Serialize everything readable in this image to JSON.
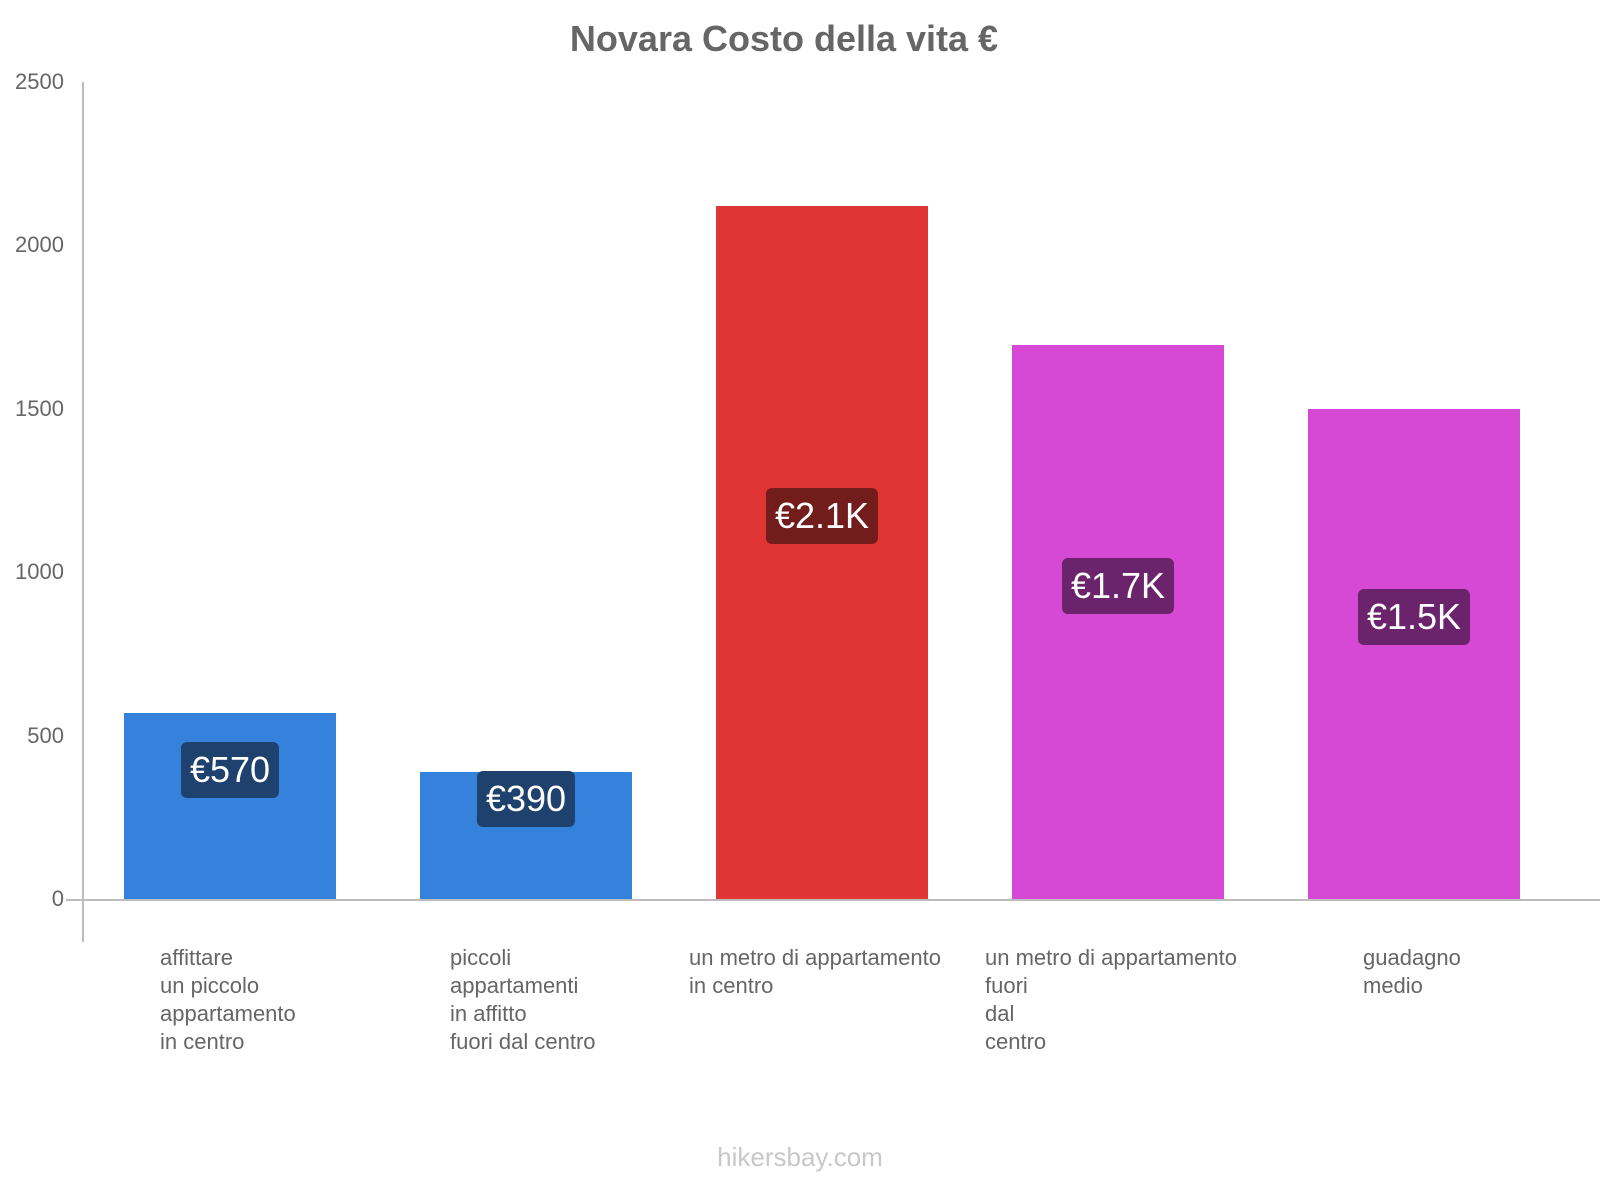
{
  "title": "Novara Costo della vita €",
  "footer": "hikersbay.com",
  "y_ticks": [
    "2500",
    "2000",
    "1500",
    "1000",
    "500",
    "0"
  ],
  "bars": [
    {
      "label_lines": "affittare\nun piccolo\nappartamento\nin centro",
      "value_label": "€570",
      "color": "#3582dd",
      "label_bg": "#1e416e"
    },
    {
      "label_lines": "piccoli\nappartamenti\nin affitto\nfuori dal centro",
      "value_label": "€390",
      "color": "#3582dd",
      "label_bg": "#1e416e"
    },
    {
      "label_lines": "un metro di appartamento\nin centro",
      "value_label": "€2.1K",
      "color": "#e03535",
      "label_bg": "#731c1c"
    },
    {
      "label_lines": "un metro di appartamento\nfuori\ndal\ncentro",
      "value_label": "€1.7K",
      "color": "#d649d4",
      "label_bg": "#6b246b"
    },
    {
      "label_lines": "guadagno\nmedio",
      "value_label": "€1.5K",
      "color": "#d649d4",
      "label_bg": "#6b246b"
    }
  ],
  "chart_data": {
    "type": "bar",
    "title": "Novara Costo della vita €",
    "categories": [
      "affittare un piccolo appartamento in centro",
      "piccoli appartamenti in affitto fuori dal centro",
      "un metro di appartamento in centro",
      "un metro di appartamento fuori dal centro",
      "guadagno medio"
    ],
    "values": [
      570,
      390,
      2120,
      1695,
      1500
    ],
    "value_labels": [
      "€570",
      "€390",
      "€2.1K",
      "€1.7K",
      "€1.5K"
    ],
    "colors": [
      "#3582dd",
      "#3582dd",
      "#e03535",
      "#d649d4",
      "#d649d4"
    ],
    "xlabel": "",
    "ylabel": "",
    "ylim": [
      0,
      2500
    ],
    "y_ticks": [
      0,
      500,
      1000,
      1500,
      2000,
      2500
    ],
    "grid": false,
    "legend": "none",
    "source": "hikersbay.com"
  }
}
